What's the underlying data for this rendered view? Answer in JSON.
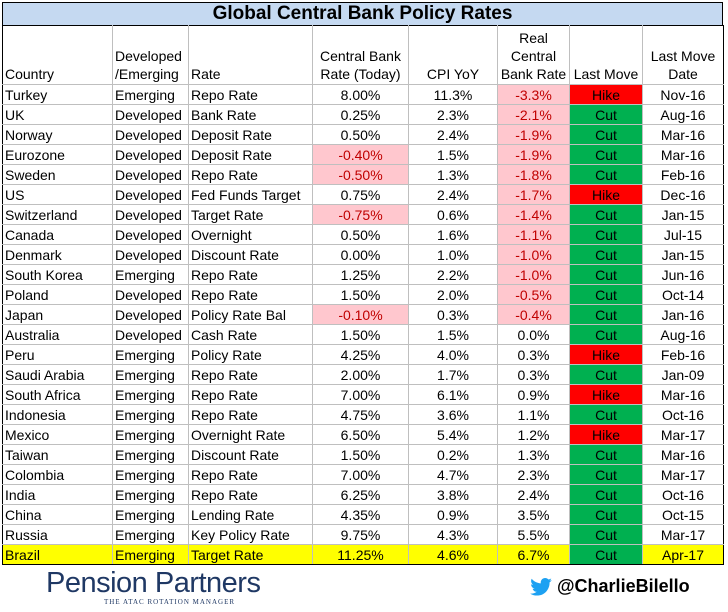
{
  "title": "Global Central Bank Policy Rates",
  "headers": {
    "country": "Country",
    "dev_em": "Developed /Emerging",
    "rate": "Rate",
    "cb_rate": "Central Bank Rate (Today)",
    "cpi": "CPI YoY",
    "real": "Real Central Bank Rate",
    "last_move": "Last Move",
    "last_move_date": "Last Move Date"
  },
  "rows": [
    {
      "country": "Turkey",
      "dev": "Emerging",
      "rate": "Repo Rate",
      "cb": "8.00%",
      "cpi": "11.3%",
      "real": "-3.3%",
      "move": "Hike",
      "date": "Nov-16"
    },
    {
      "country": "UK",
      "dev": "Developed",
      "rate": "Bank Rate",
      "cb": "0.25%",
      "cpi": "2.3%",
      "real": "-2.1%",
      "move": "Cut",
      "date": "Aug-16"
    },
    {
      "country": "Norway",
      "dev": "Developed",
      "rate": "Deposit Rate",
      "cb": "0.50%",
      "cpi": "2.4%",
      "real": "-1.9%",
      "move": "Cut",
      "date": "Mar-16"
    },
    {
      "country": "Eurozone",
      "dev": "Developed",
      "rate": "Deposit Rate",
      "cb": "-0.40%",
      "cpi": "1.5%",
      "real": "-1.9%",
      "move": "Cut",
      "date": "Mar-16"
    },
    {
      "country": "Sweden",
      "dev": "Developed",
      "rate": "Repo Rate",
      "cb": "-0.50%",
      "cpi": "1.3%",
      "real": "-1.8%",
      "move": "Cut",
      "date": "Feb-16"
    },
    {
      "country": "US",
      "dev": "Developed",
      "rate": "Fed Funds Target",
      "cb": "0.75%",
      "cpi": "2.4%",
      "real": "-1.7%",
      "move": "Hike",
      "date": "Dec-16"
    },
    {
      "country": "Switzerland",
      "dev": "Developed",
      "rate": "Target Rate",
      "cb": "-0.75%",
      "cpi": "0.6%",
      "real": "-1.4%",
      "move": "Cut",
      "date": "Jan-15"
    },
    {
      "country": "Canada",
      "dev": "Developed",
      "rate": "Overnight",
      "cb": "0.50%",
      "cpi": "1.6%",
      "real": "-1.1%",
      "move": "Cut",
      "date": "Jul-15"
    },
    {
      "country": "Denmark",
      "dev": "Developed",
      "rate": "Discount Rate",
      "cb": "0.00%",
      "cpi": "1.0%",
      "real": "-1.0%",
      "move": "Cut",
      "date": "Jan-15"
    },
    {
      "country": "South Korea",
      "dev": "Emerging",
      "rate": "Repo Rate",
      "cb": "1.25%",
      "cpi": "2.2%",
      "real": "-1.0%",
      "move": "Cut",
      "date": "Jun-16"
    },
    {
      "country": "Poland",
      "dev": "Developed",
      "rate": "Repo Rate",
      "cb": "1.50%",
      "cpi": "2.0%",
      "real": "-0.5%",
      "move": "Cut",
      "date": "Oct-14"
    },
    {
      "country": "Japan",
      "dev": "Developed",
      "rate": "Policy Rate Bal",
      "cb": "-0.10%",
      "cpi": "0.3%",
      "real": "-0.4%",
      "move": "Cut",
      "date": "Jan-16"
    },
    {
      "country": "Australia",
      "dev": "Developed",
      "rate": "Cash Rate",
      "cb": "1.50%",
      "cpi": "1.5%",
      "real": "0.0%",
      "move": "Cut",
      "date": "Aug-16"
    },
    {
      "country": "Peru",
      "dev": "Emerging",
      "rate": "Policy Rate",
      "cb": "4.25%",
      "cpi": "4.0%",
      "real": "0.3%",
      "move": "Hike",
      "date": "Feb-16"
    },
    {
      "country": "Saudi Arabia",
      "dev": "Emerging",
      "rate": "Repo Rate",
      "cb": "2.00%",
      "cpi": "1.7%",
      "real": "0.3%",
      "move": "Cut",
      "date": "Jan-09"
    },
    {
      "country": "South Africa",
      "dev": "Emerging",
      "rate": "Repo Rate",
      "cb": "7.00%",
      "cpi": "6.1%",
      "real": "0.9%",
      "move": "Hike",
      "date": "Mar-16"
    },
    {
      "country": "Indonesia",
      "dev": "Emerging",
      "rate": "Repo Rate",
      "cb": "4.75%",
      "cpi": "3.6%",
      "real": "1.1%",
      "move": "Cut",
      "date": "Oct-16"
    },
    {
      "country": "Mexico",
      "dev": "Emerging",
      "rate": "Overnight Rate",
      "cb": "6.50%",
      "cpi": "5.4%",
      "real": "1.2%",
      "move": "Hike",
      "date": "Mar-17"
    },
    {
      "country": "Taiwan",
      "dev": "Emerging",
      "rate": "Discount Rate",
      "cb": "1.50%",
      "cpi": "0.2%",
      "real": "1.3%",
      "move": "Cut",
      "date": "Mar-16"
    },
    {
      "country": "Colombia",
      "dev": "Emerging",
      "rate": "Repo Rate",
      "cb": "7.00%",
      "cpi": "4.7%",
      "real": "2.3%",
      "move": "Cut",
      "date": "Mar-17"
    },
    {
      "country": "India",
      "dev": "Emerging",
      "rate": "Repo Rate",
      "cb": "6.25%",
      "cpi": "3.8%",
      "real": "2.4%",
      "move": "Cut",
      "date": "Oct-16"
    },
    {
      "country": "China",
      "dev": "Emerging",
      "rate": "Lending Rate",
      "cb": "4.35%",
      "cpi": "0.9%",
      "real": "3.5%",
      "move": "Cut",
      "date": "Oct-15"
    },
    {
      "country": "Russia",
      "dev": "Emerging",
      "rate": "Key Policy Rate",
      "cb": "9.75%",
      "cpi": "4.3%",
      "real": "5.5%",
      "move": "Cut",
      "date": "Mar-17"
    },
    {
      "country": "Brazil",
      "dev": "Emerging",
      "rate": "Target Rate",
      "cb": "11.25%",
      "cpi": "4.6%",
      "real": "6.7%",
      "move": "Cut",
      "date": "Apr-17",
      "highlight": true
    }
  ],
  "colors": {
    "title_bg": "#c5d9f1",
    "negative_bg": "#ffc7ce",
    "negative_text": "#c00000",
    "hike": "#ff0000",
    "cut": "#00b050",
    "highlight": "#ffff00"
  },
  "footer": {
    "logo_name": "Pension Partners",
    "logo_tagline": "THE ATAC ROTATION MANAGER",
    "twitter_icon": "twitter-bird-icon",
    "handle": "@CharlieBilello"
  }
}
